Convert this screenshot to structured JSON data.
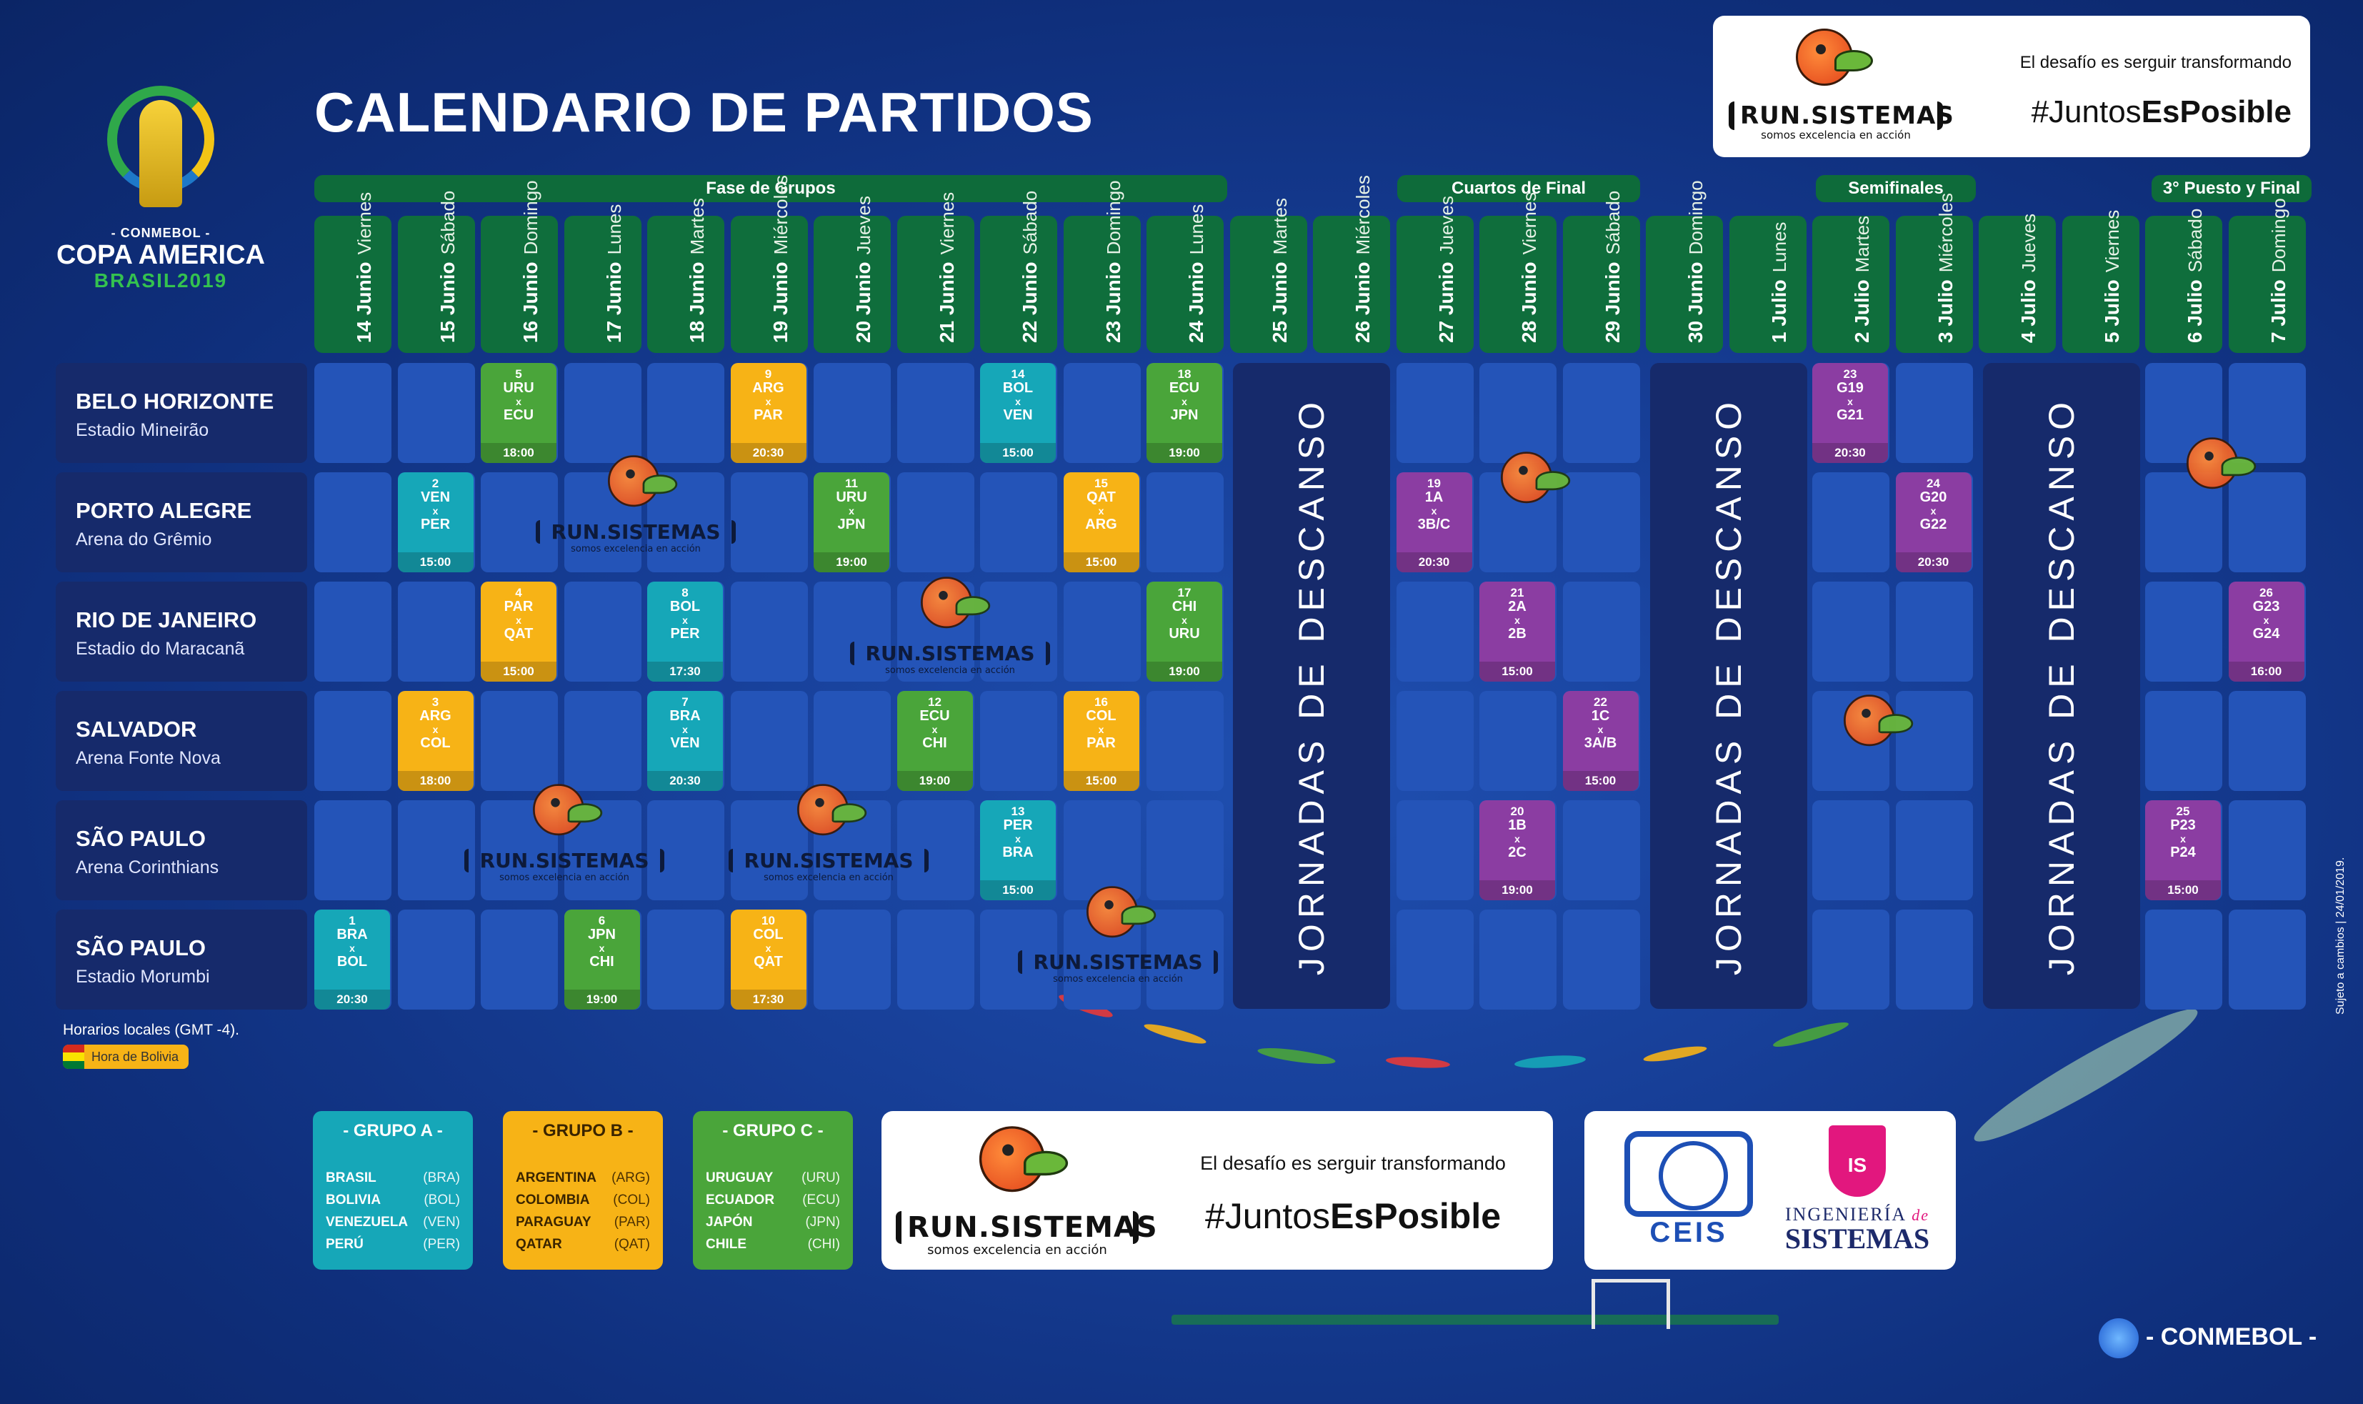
{
  "header": {
    "title": "CALENDARIO DE PARTIDOS",
    "logo_conmebol": "- CONMEBOL -",
    "logo_copa": "COPA AMERICA",
    "logo_brasil": "BRASIL2019"
  },
  "promo": {
    "runs_title": "RUN.SISTEMAS",
    "runs_subtitle": "somos excelencia en acción",
    "tagline": "El desafío es serguir transformando",
    "hashtag_a": "#Juntos",
    "hashtag_b": "EsPosible"
  },
  "phases": {
    "groups": "Fase de Grupos",
    "quarters": "Cuartos de Final",
    "semis": "Semifinales",
    "third_final": "3° Puesto y Final"
  },
  "dates": [
    {
      "d": "14 Junio",
      "w": "Viernes"
    },
    {
      "d": "15 Junio",
      "w": "Sábado"
    },
    {
      "d": "16 Junio",
      "w": "Domingo"
    },
    {
      "d": "17 Junio",
      "w": "Lunes"
    },
    {
      "d": "18 Junio",
      "w": "Martes"
    },
    {
      "d": "19 Junio",
      "w": "Miércoles"
    },
    {
      "d": "20 Junio",
      "w": "Jueves"
    },
    {
      "d": "21 Junio",
      "w": "Viernes"
    },
    {
      "d": "22 Junio",
      "w": "Sábado"
    },
    {
      "d": "23 Junio",
      "w": "Domingo"
    },
    {
      "d": "24 Junio",
      "w": "Lunes"
    },
    {
      "d": "25 Junio",
      "w": "Martes"
    },
    {
      "d": "26 Junio",
      "w": "Miércoles"
    },
    {
      "d": "27 Junio",
      "w": "Jueves"
    },
    {
      "d": "28 Junio",
      "w": "Viernes"
    },
    {
      "d": "29 Junio",
      "w": "Sábado"
    },
    {
      "d": "30 Junio",
      "w": "Domingo"
    },
    {
      "d": "1 Julio",
      "w": "Lunes"
    },
    {
      "d": "2 Julio",
      "w": "Martes"
    },
    {
      "d": "3 Julio",
      "w": "Miércoles"
    },
    {
      "d": "4 Julio",
      "w": "Jueves"
    },
    {
      "d": "5 Julio",
      "w": "Viernes"
    },
    {
      "d": "6 Julio",
      "w": "Sábado"
    },
    {
      "d": "7 Julio",
      "w": "Domingo"
    }
  ],
  "venues": [
    {
      "city": "BELO HORIZONTE",
      "stadium": "Estadio Mineirão"
    },
    {
      "city": "PORTO ALEGRE",
      "stadium": "Arena do Grêmio"
    },
    {
      "city": "RIO DE JANEIRO",
      "stadium": "Estadio do Maracanã"
    },
    {
      "city": "SALVADOR",
      "stadium": "Arena Fonte Nova"
    },
    {
      "city": "SÃO PAULO",
      "stadium": "Arena Corinthians"
    },
    {
      "city": "SÃO PAULO",
      "stadium": "Estadio Morumbi"
    }
  ],
  "rest_label": "JORNADAS DE DESCANSO",
  "matches": [
    {
      "n": "1",
      "a": "BRA",
      "b": "BOL",
      "time": "20:30",
      "venue": 5,
      "day": 0,
      "color": "teal"
    },
    {
      "n": "2",
      "a": "VEN",
      "b": "PER",
      "time": "15:00",
      "venue": 1,
      "day": 1,
      "color": "teal"
    },
    {
      "n": "3",
      "a": "ARG",
      "b": "COL",
      "time": "18:00",
      "venue": 3,
      "day": 1,
      "color": "yellow"
    },
    {
      "n": "4",
      "a": "PAR",
      "b": "QAT",
      "time": "15:00",
      "venue": 2,
      "day": 2,
      "color": "yellow"
    },
    {
      "n": "5",
      "a": "URU",
      "b": "ECU",
      "time": "18:00",
      "venue": 0,
      "day": 2,
      "color": "green"
    },
    {
      "n": "6",
      "a": "JPN",
      "b": "CHI",
      "time": "19:00",
      "venue": 5,
      "day": 3,
      "color": "green"
    },
    {
      "n": "7",
      "a": "BRA",
      "b": "VEN",
      "time": "20:30",
      "venue": 3,
      "day": 4,
      "color": "teal"
    },
    {
      "n": "8",
      "a": "BOL",
      "b": "PER",
      "time": "17:30",
      "venue": 2,
      "day": 4,
      "color": "teal"
    },
    {
      "n": "9",
      "a": "ARG",
      "b": "PAR",
      "time": "20:30",
      "venue": 0,
      "day": 5,
      "color": "yellow"
    },
    {
      "n": "10",
      "a": "COL",
      "b": "QAT",
      "time": "17:30",
      "venue": 5,
      "day": 5,
      "color": "yellow"
    },
    {
      "n": "11",
      "a": "URU",
      "b": "JPN",
      "time": "19:00",
      "venue": 1,
      "day": 6,
      "color": "green"
    },
    {
      "n": "12",
      "a": "ECU",
      "b": "CHI",
      "time": "19:00",
      "venue": 3,
      "day": 7,
      "color": "green"
    },
    {
      "n": "13",
      "a": "PER",
      "b": "BRA",
      "time": "15:00",
      "venue": 4,
      "day": 8,
      "color": "teal"
    },
    {
      "n": "14",
      "a": "BOL",
      "b": "VEN",
      "time": "15:00",
      "venue": 0,
      "day": 8,
      "color": "teal"
    },
    {
      "n": "15",
      "a": "QAT",
      "b": "ARG",
      "time": "15:00",
      "venue": 1,
      "day": 9,
      "color": "yellow"
    },
    {
      "n": "16",
      "a": "COL",
      "b": "PAR",
      "time": "15:00",
      "venue": 3,
      "day": 9,
      "color": "yellow"
    },
    {
      "n": "17",
      "a": "CHI",
      "b": "URU",
      "time": "19:00",
      "venue": 2,
      "day": 10,
      "color": "green"
    },
    {
      "n": "18",
      "a": "ECU",
      "b": "JPN",
      "time": "19:00",
      "venue": 0,
      "day": 10,
      "color": "green"
    },
    {
      "n": "19",
      "a": "1A",
      "b": "3B/C",
      "time": "20:30",
      "venue": 1,
      "day": 13,
      "color": "purple"
    },
    {
      "n": "20",
      "a": "1B",
      "b": "2C",
      "time": "19:00",
      "venue": 4,
      "day": 14,
      "color": "purple"
    },
    {
      "n": "21",
      "a": "2A",
      "b": "2B",
      "time": "15:00",
      "venue": 2,
      "day": 14,
      "color": "purple"
    },
    {
      "n": "22",
      "a": "1C",
      "b": "3A/B",
      "time": "15:00",
      "venue": 3,
      "day": 15,
      "color": "purple"
    },
    {
      "n": "23",
      "a": "G19",
      "b": "G21",
      "time": "20:30",
      "venue": 0,
      "day": 18,
      "color": "purple"
    },
    {
      "n": "24",
      "a": "G20",
      "b": "G22",
      "time": "20:30",
      "venue": 1,
      "day": 19,
      "color": "purple"
    },
    {
      "n": "25",
      "a": "P23",
      "b": "P24",
      "time": "15:00",
      "venue": 4,
      "day": 22,
      "color": "purple"
    },
    {
      "n": "26",
      "a": "G23",
      "b": "G24",
      "time": "16:00",
      "venue": 2,
      "day": 23,
      "color": "purple"
    }
  ],
  "x_sep": "x",
  "notes": {
    "local_time": "Horarios locales (GMT -4).",
    "bolivia": "Hora de Bolivia",
    "subject": "Sujeto a cambios | 24/01/2019."
  },
  "groups": [
    {
      "title": "- GRUPO A -",
      "teams": [
        [
          "BRASIL",
          "(BRA)"
        ],
        [
          "BOLIVIA",
          "(BOL)"
        ],
        [
          "VENEZUELA",
          "(VEN)"
        ],
        [
          "PERÚ",
          "(PER)"
        ]
      ]
    },
    {
      "title": "- GRUPO B -",
      "teams": [
        [
          "ARGENTINA",
          "(ARG)"
        ],
        [
          "COLOMBIA",
          "(COL)"
        ],
        [
          "PARAGUAY",
          "(PAR)"
        ],
        [
          "QATAR",
          "(QAT)"
        ]
      ]
    },
    {
      "title": "- GRUPO C -",
      "teams": [
        [
          "URUGUAY",
          "(URU)"
        ],
        [
          "ECUADOR",
          "(ECU)"
        ],
        [
          "JAPÓN",
          "(JPN)"
        ],
        [
          "CHILE",
          "(CHI)"
        ]
      ]
    }
  ],
  "university": {
    "ceis": "CEIS",
    "shield": "IS",
    "ing_line1": "INGENIERÍA",
    "ing_de": "de",
    "ing_line2": "SISTEMAS"
  },
  "footer": {
    "conmebol": "- CONMEBOL -"
  },
  "colors": {
    "green": "#4aa53a",
    "yellow": "#f7b316",
    "teal": "#16a7b8",
    "purple": "#8b3da2",
    "header_green": "#0f6e3c"
  }
}
